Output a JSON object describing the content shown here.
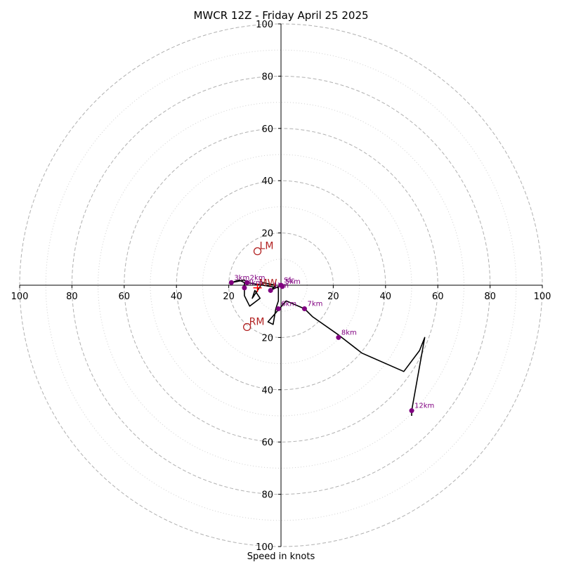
{
  "chart_data": {
    "type": "line",
    "title": "MWCR 12Z - Friday April 25 2025",
    "xlabel": "Speed in knots",
    "ylabel": "",
    "xlim": [
      -100,
      100
    ],
    "ylim": [
      -100,
      100
    ],
    "rings": {
      "major": [
        20,
        40,
        60,
        80,
        100
      ],
      "minor": [
        10,
        30,
        50,
        70,
        90
      ]
    },
    "ticks": {
      "x": [
        {
          "v": -100,
          "t": "100"
        },
        {
          "v": -80,
          "t": "80"
        },
        {
          "v": -60,
          "t": "60"
        },
        {
          "v": -40,
          "t": "40"
        },
        {
          "v": -20,
          "t": "20"
        },
        {
          "v": 20,
          "t": "20"
        },
        {
          "v": 40,
          "t": "40"
        },
        {
          "v": 60,
          "t": "60"
        },
        {
          "v": 80,
          "t": "80"
        },
        {
          "v": 100,
          "t": "100"
        }
      ],
      "y": [
        {
          "v": 100,
          "t": "100"
        },
        {
          "v": 80,
          "t": "80"
        },
        {
          "v": 60,
          "t": "60"
        },
        {
          "v": 40,
          "t": "40"
        },
        {
          "v": 20,
          "t": "20"
        },
        {
          "v": -20,
          "t": "20"
        },
        {
          "v": -40,
          "t": "40"
        },
        {
          "v": -60,
          "t": "60"
        },
        {
          "v": -80,
          "t": "80"
        },
        {
          "v": -100,
          "t": "100"
        }
      ]
    },
    "hodograph": [
      [
        0,
        0
      ],
      [
        -4,
        -2
      ],
      [
        -2,
        0
      ],
      [
        -7,
        1
      ],
      [
        -11,
        -5
      ],
      [
        -10,
        -2
      ],
      [
        -8,
        -5
      ],
      [
        -12,
        -8
      ],
      [
        -14,
        -4
      ],
      [
        -14,
        1
      ],
      [
        -16,
        2
      ],
      [
        -19,
        1
      ],
      [
        -14,
        2
      ],
      [
        -13,
        1
      ],
      [
        -1,
        -1
      ],
      [
        -1,
        -6
      ],
      [
        -2,
        -9
      ],
      [
        -3,
        -15
      ],
      [
        -5,
        -14
      ],
      [
        2,
        -6
      ],
      [
        9,
        -9
      ],
      [
        12,
        -12
      ],
      [
        22,
        -19
      ],
      [
        31,
        -26
      ],
      [
        47,
        -33
      ],
      [
        53,
        -25
      ],
      [
        55,
        -20
      ],
      [
        50,
        -48
      ],
      [
        50,
        -50
      ]
    ],
    "height_labels": [
      {
        "label": "Sfc",
        "x": 0,
        "y": 0
      },
      {
        "label": "5km",
        "x": 0.5,
        "y": -0.5
      },
      {
        "label": "1km",
        "x": -4,
        "y": -2
      },
      {
        "label": "2km",
        "x": -13,
        "y": 1
      },
      {
        "label": "3km",
        "x": -19,
        "y": 1
      },
      {
        "label": "4km",
        "x": -14,
        "y": -1
      },
      {
        "label": "6km",
        "x": -1,
        "y": -9
      },
      {
        "label": "7km",
        "x": 9,
        "y": -9
      },
      {
        "label": "8km",
        "x": 22,
        "y": -20
      },
      {
        "label": "12km",
        "x": 50,
        "y": -48
      }
    ],
    "storm_motion": [
      {
        "label": "LM",
        "x": -9,
        "y": 13
      },
      {
        "label": "RM",
        "x": -13,
        "y": -16
      }
    ],
    "mean_wind": {
      "label": "MW",
      "x": -9,
      "y": -1
    },
    "colors": {
      "grid": "#b0b0b0",
      "hodograph": "#000000",
      "markers": "#800080",
      "storm_motion": "#b22222",
      "mean_wind": "#ff0000"
    }
  }
}
